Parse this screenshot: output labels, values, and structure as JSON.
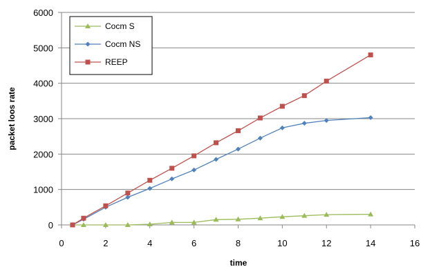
{
  "chart_data": {
    "type": "line",
    "title": "",
    "xlabel": "time",
    "ylabel": "packet loos rate",
    "xlim": [
      0,
      16
    ],
    "ylim": [
      0,
      6000
    ],
    "xticks": [
      0,
      2,
      4,
      6,
      8,
      10,
      12,
      14,
      16
    ],
    "yticks": [
      0,
      1000,
      2000,
      3000,
      4000,
      5000,
      6000
    ],
    "grid": {
      "horizontal": true,
      "vertical": false
    },
    "legend_position": "top-left",
    "series": [
      {
        "name": "Cocm S",
        "color": "#9bbb59",
        "marker": "triangle",
        "points": [
          [
            0.5,
            0
          ],
          [
            1,
            0
          ],
          [
            2,
            0
          ],
          [
            3,
            0
          ],
          [
            4,
            20
          ],
          [
            5,
            70
          ],
          [
            6,
            70
          ],
          [
            7,
            150
          ],
          [
            8,
            160
          ],
          [
            9,
            190
          ],
          [
            10,
            230
          ],
          [
            11,
            260
          ],
          [
            12,
            290
          ],
          [
            14,
            300
          ]
        ]
      },
      {
        "name": "Cocm NS",
        "color": "#4f81bd",
        "marker": "diamond",
        "points": [
          [
            0.5,
            0
          ],
          [
            1,
            160
          ],
          [
            2,
            500
          ],
          [
            3,
            780
          ],
          [
            4,
            1030
          ],
          [
            5,
            1300
          ],
          [
            6,
            1550
          ],
          [
            7,
            1850
          ],
          [
            8,
            2140
          ],
          [
            9,
            2450
          ],
          [
            10,
            2740
          ],
          [
            11,
            2870
          ],
          [
            12,
            2950
          ],
          [
            14,
            3030
          ]
        ]
      },
      {
        "name": "REEP",
        "color": "#c0504d",
        "marker": "square",
        "points": [
          [
            0.5,
            0
          ],
          [
            1,
            190
          ],
          [
            2,
            540
          ],
          [
            3,
            900
          ],
          [
            4,
            1260
          ],
          [
            5,
            1600
          ],
          [
            6,
            1950
          ],
          [
            7,
            2320
          ],
          [
            8,
            2660
          ],
          [
            9,
            3020
          ],
          [
            10,
            3350
          ],
          [
            11,
            3650
          ],
          [
            12,
            4060
          ],
          [
            14,
            4800
          ]
        ]
      }
    ]
  }
}
